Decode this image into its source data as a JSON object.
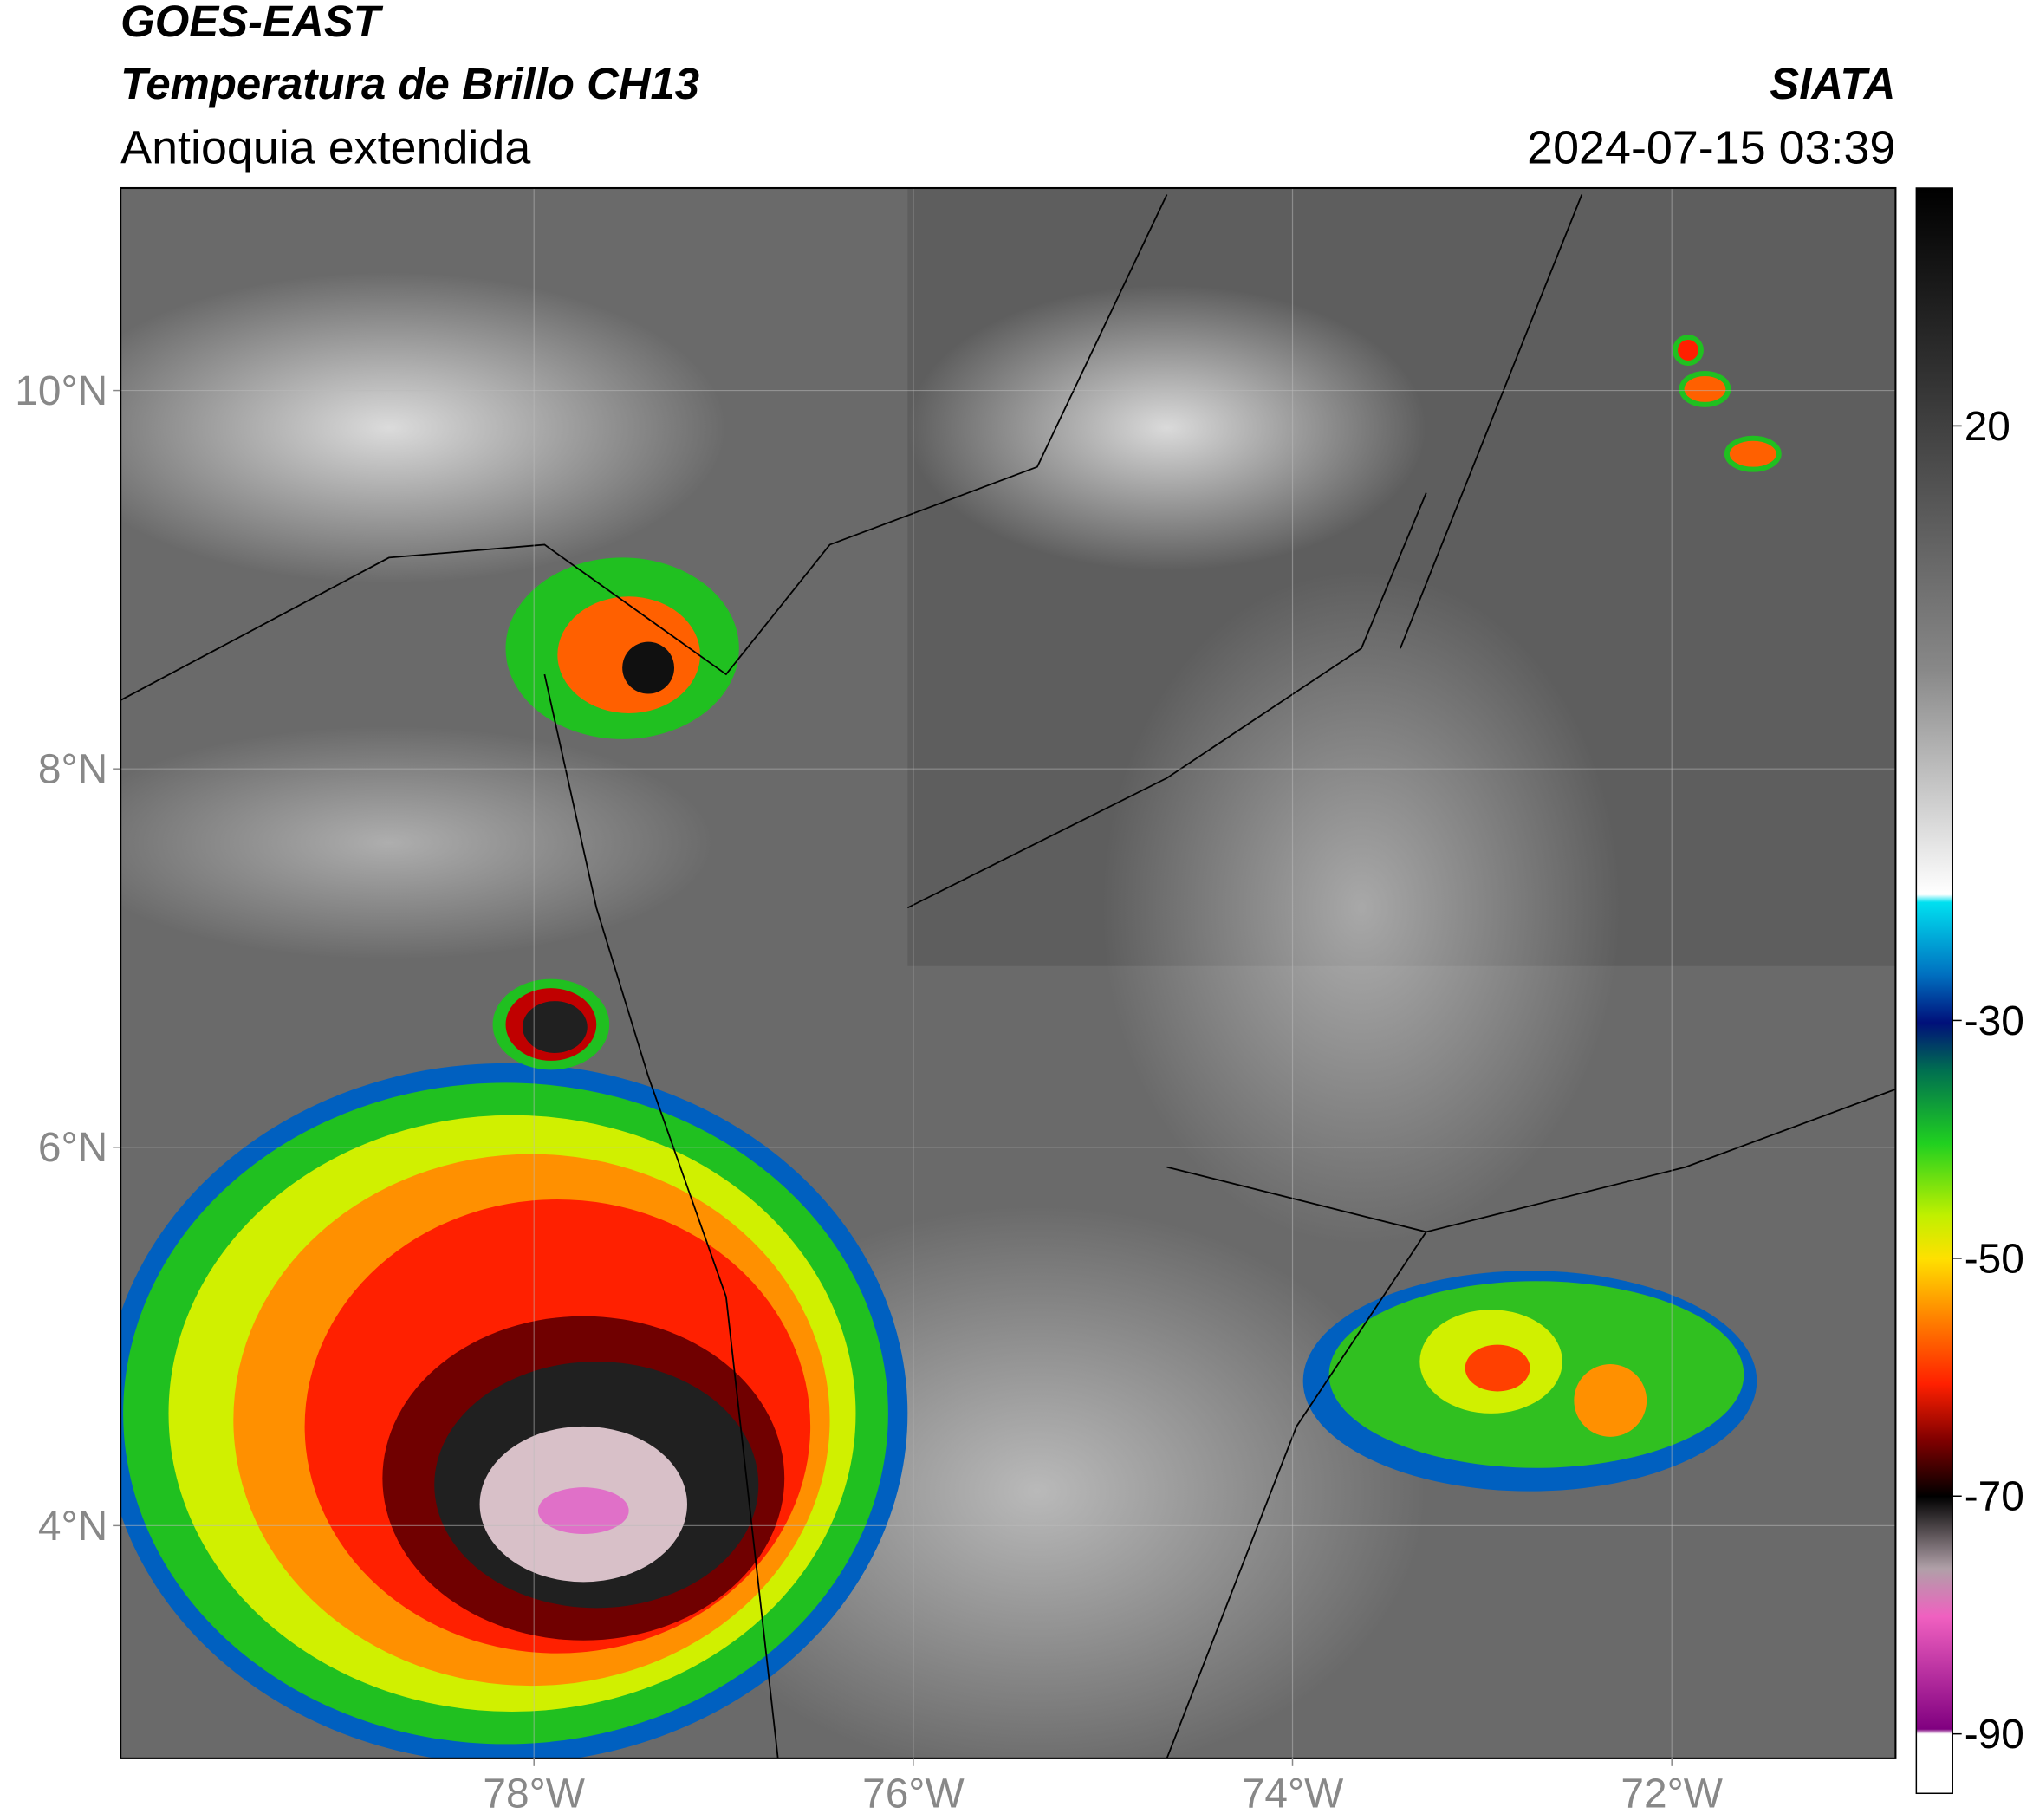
{
  "header": {
    "title": "GOES-EAST",
    "subtitle": "Temperatura de Brillo CH13",
    "region": "Antioquia extendida",
    "agency": "SIATA",
    "datetime": "2024-07-15 03:39"
  },
  "map": {
    "xlim": [
      -80.18,
      -70.82
    ],
    "ylim": [
      2.77,
      11.07
    ],
    "xticks": [
      {
        "value": -78,
        "label": "78°W"
      },
      {
        "value": -76,
        "label": "76°W"
      },
      {
        "value": -74,
        "label": "74°W"
      },
      {
        "value": -72,
        "label": "72°W"
      }
    ],
    "yticks": [
      {
        "value": 4,
        "label": "4°N"
      },
      {
        "value": 6,
        "label": "6°N"
      },
      {
        "value": 8,
        "label": "8°N"
      },
      {
        "value": 10,
        "label": "10°N"
      }
    ],
    "grid": true
  },
  "colorbar": {
    "lim": [
      -95,
      40
    ],
    "ticks": [
      20,
      -30,
      -50,
      -70,
      -90
    ]
  }
}
